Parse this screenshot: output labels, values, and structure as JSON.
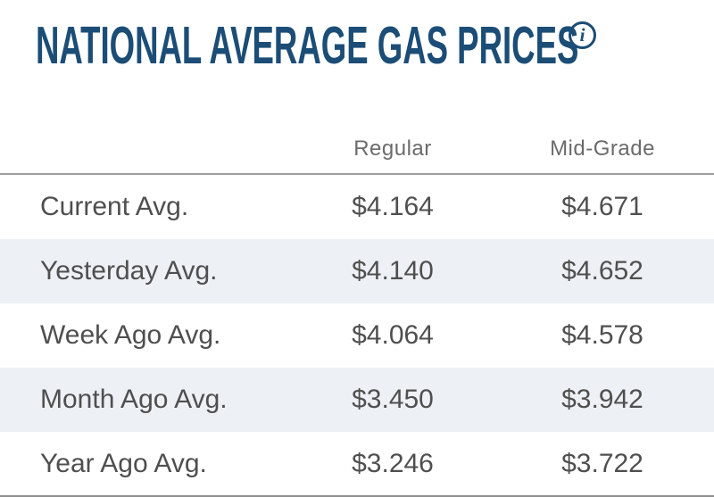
{
  "title": "NATIONAL AVERAGE GAS PRICES",
  "info_icon": {
    "glyph": "i",
    "name": "info-tooltip"
  },
  "colors": {
    "title_blue": "#1b4d76",
    "header_gray": "#6b6b6b",
    "row_text_gray": "#4f4f4f",
    "alt_row_bg": "#edf1f6",
    "divider_gray": "#9e9e9e"
  },
  "table": {
    "columns": [
      "Regular",
      "Mid-Grade"
    ],
    "rows": [
      {
        "label": "Current Avg.",
        "regular": "$4.164",
        "mid_grade": "$4.671"
      },
      {
        "label": "Yesterday Avg.",
        "regular": "$4.140",
        "mid_grade": "$4.652"
      },
      {
        "label": "Week Ago Avg.",
        "regular": "$4.064",
        "mid_grade": "$4.578"
      },
      {
        "label": "Month Ago Avg.",
        "regular": "$3.450",
        "mid_grade": "$3.942"
      },
      {
        "label": "Year Ago Avg.",
        "regular": "$3.246",
        "mid_grade": "$3.722"
      }
    ]
  }
}
